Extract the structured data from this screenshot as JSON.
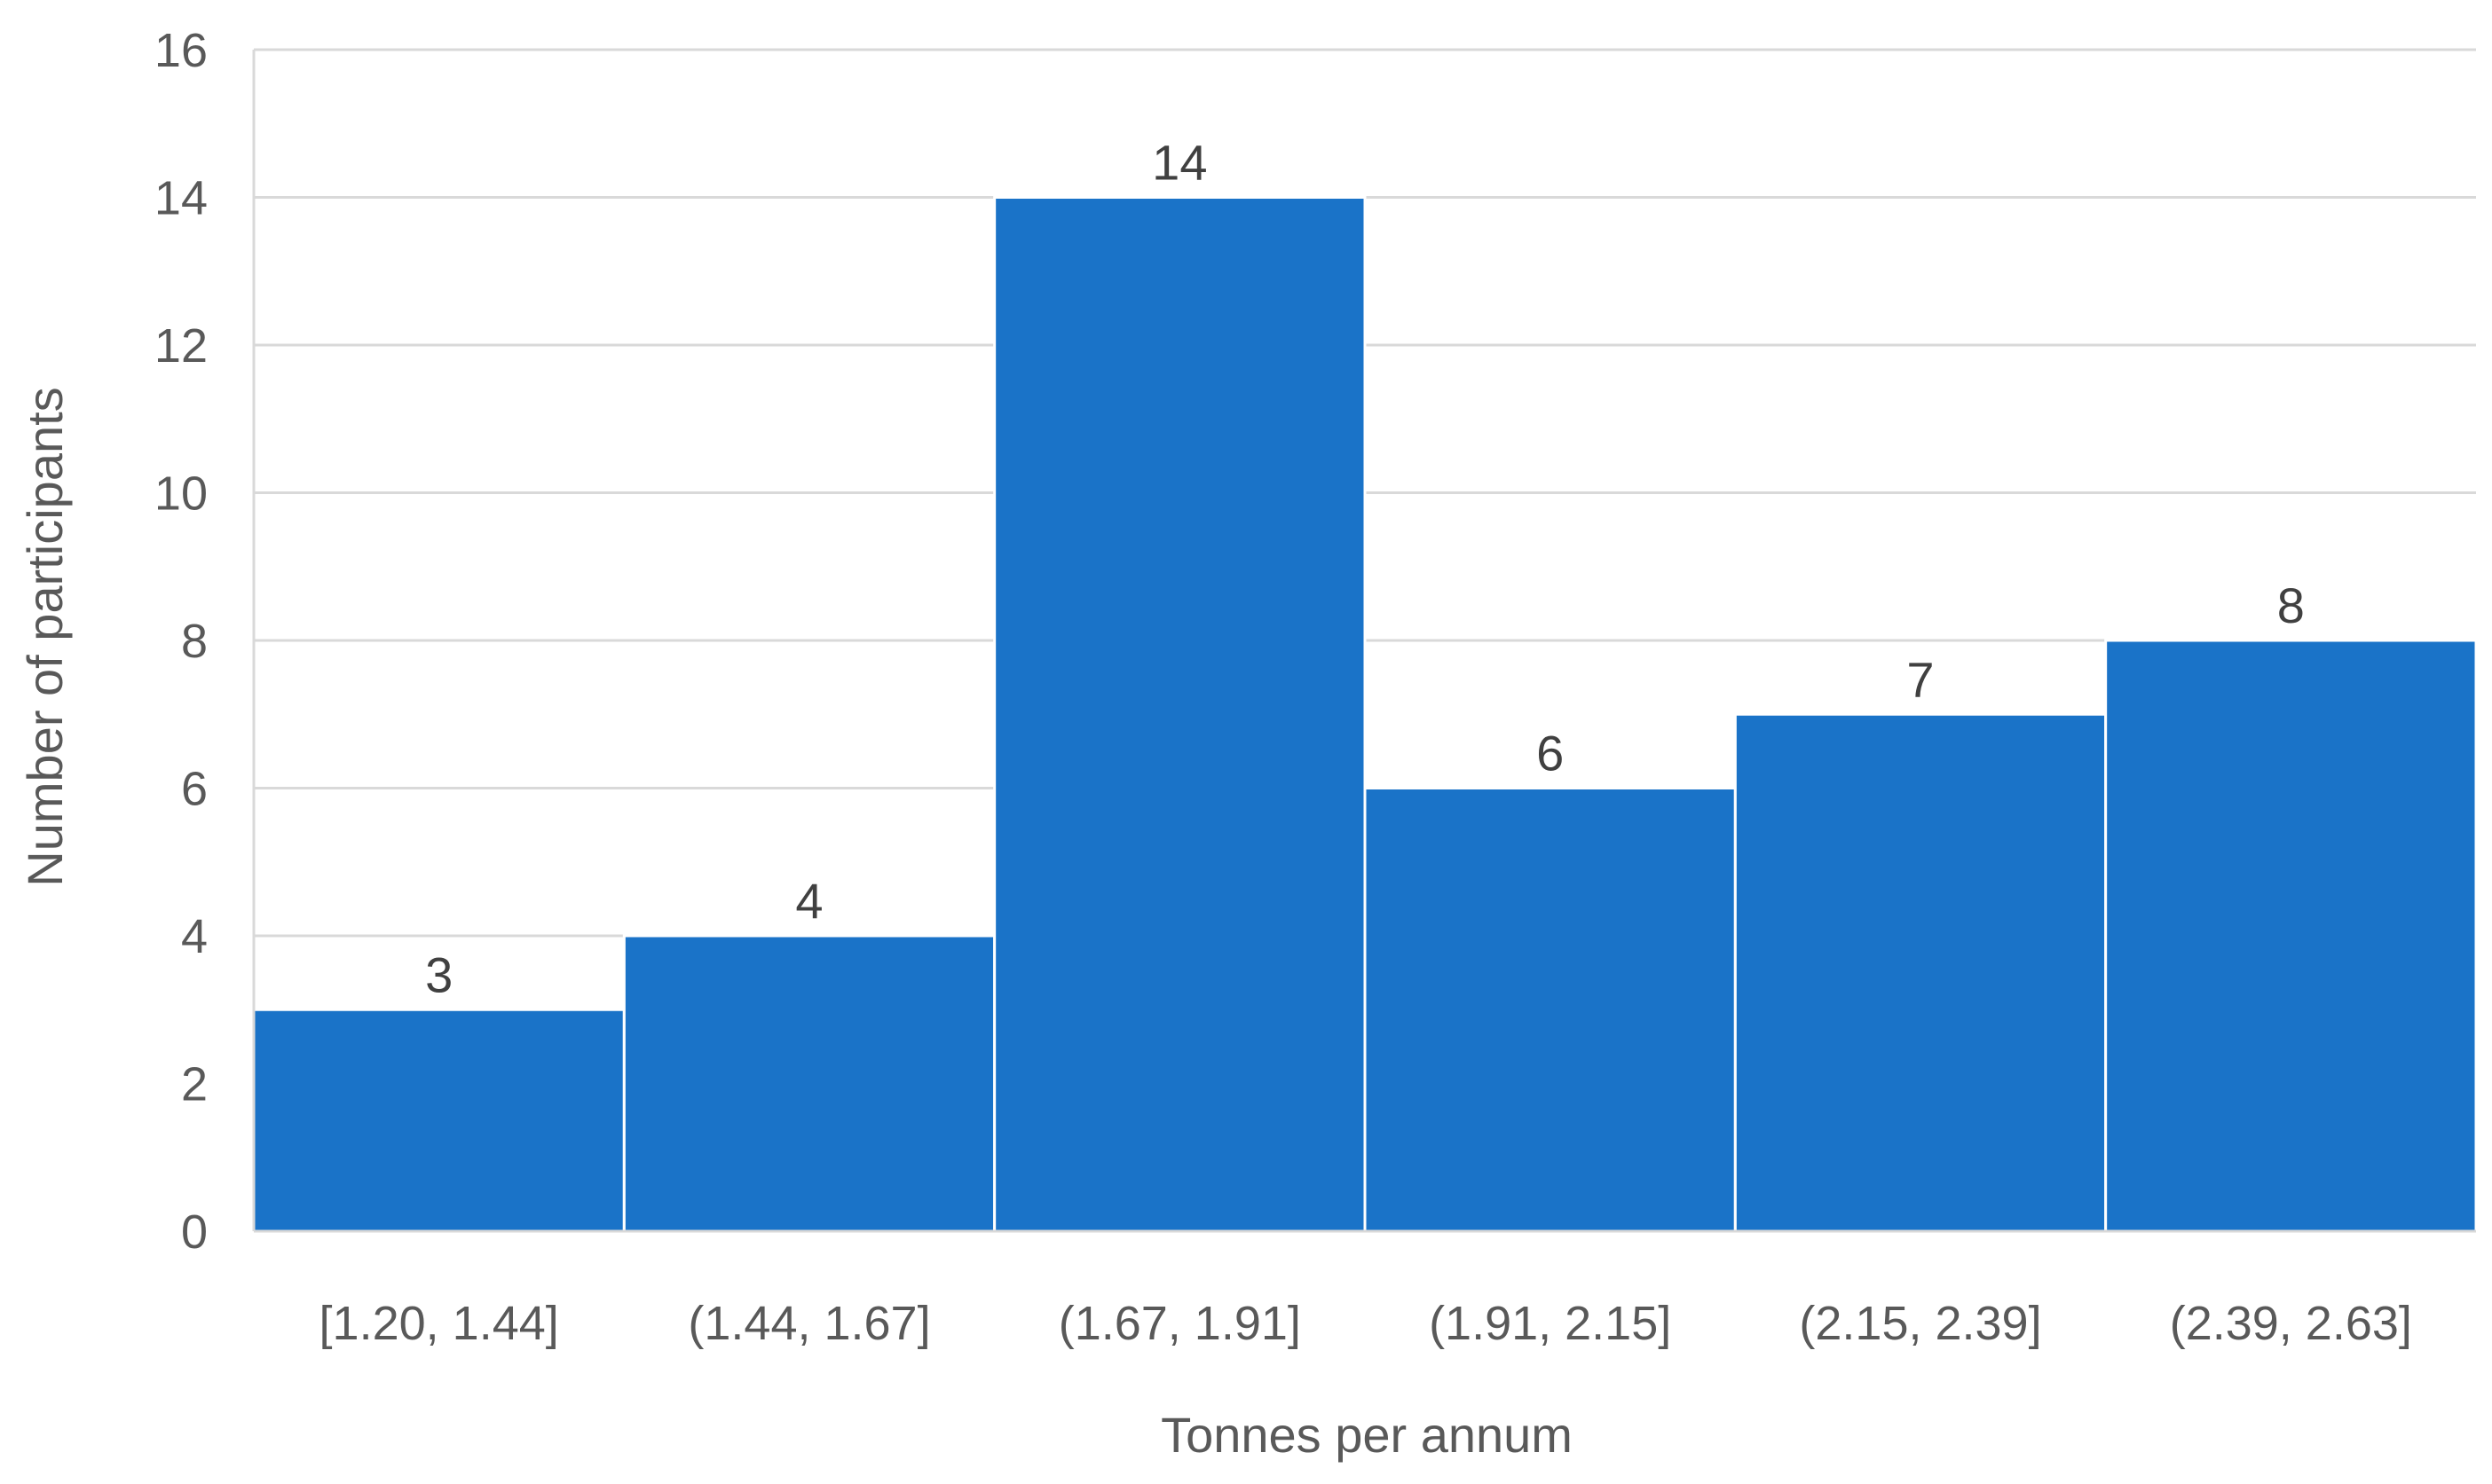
{
  "chart_data": {
    "type": "bar",
    "title": "",
    "xlabel": "Tonnes per annum",
    "ylabel": "Number of participants",
    "categories": [
      "[1.20, 1.44]",
      "(1.44, 1.67]",
      "(1.67, 1.91]",
      "(1.91, 2.15]",
      "(2.15, 2.39]",
      "(2.39, 2.63]"
    ],
    "values": [
      3,
      4,
      14,
      6,
      7,
      8
    ],
    "data_labels": [
      "3",
      "4",
      "14",
      "6",
      "7",
      "8"
    ],
    "ylim": [
      0,
      16
    ],
    "yticks": [
      "0",
      "2",
      "4",
      "6",
      "8",
      "10",
      "12",
      "14",
      "16"
    ],
    "grid": true,
    "legend": "none",
    "colors": {
      "bar": "#1a73c8",
      "bar_edge": "#ffffff",
      "grid": "#d9d9d9",
      "axis_line": "#d9d9d9"
    }
  }
}
